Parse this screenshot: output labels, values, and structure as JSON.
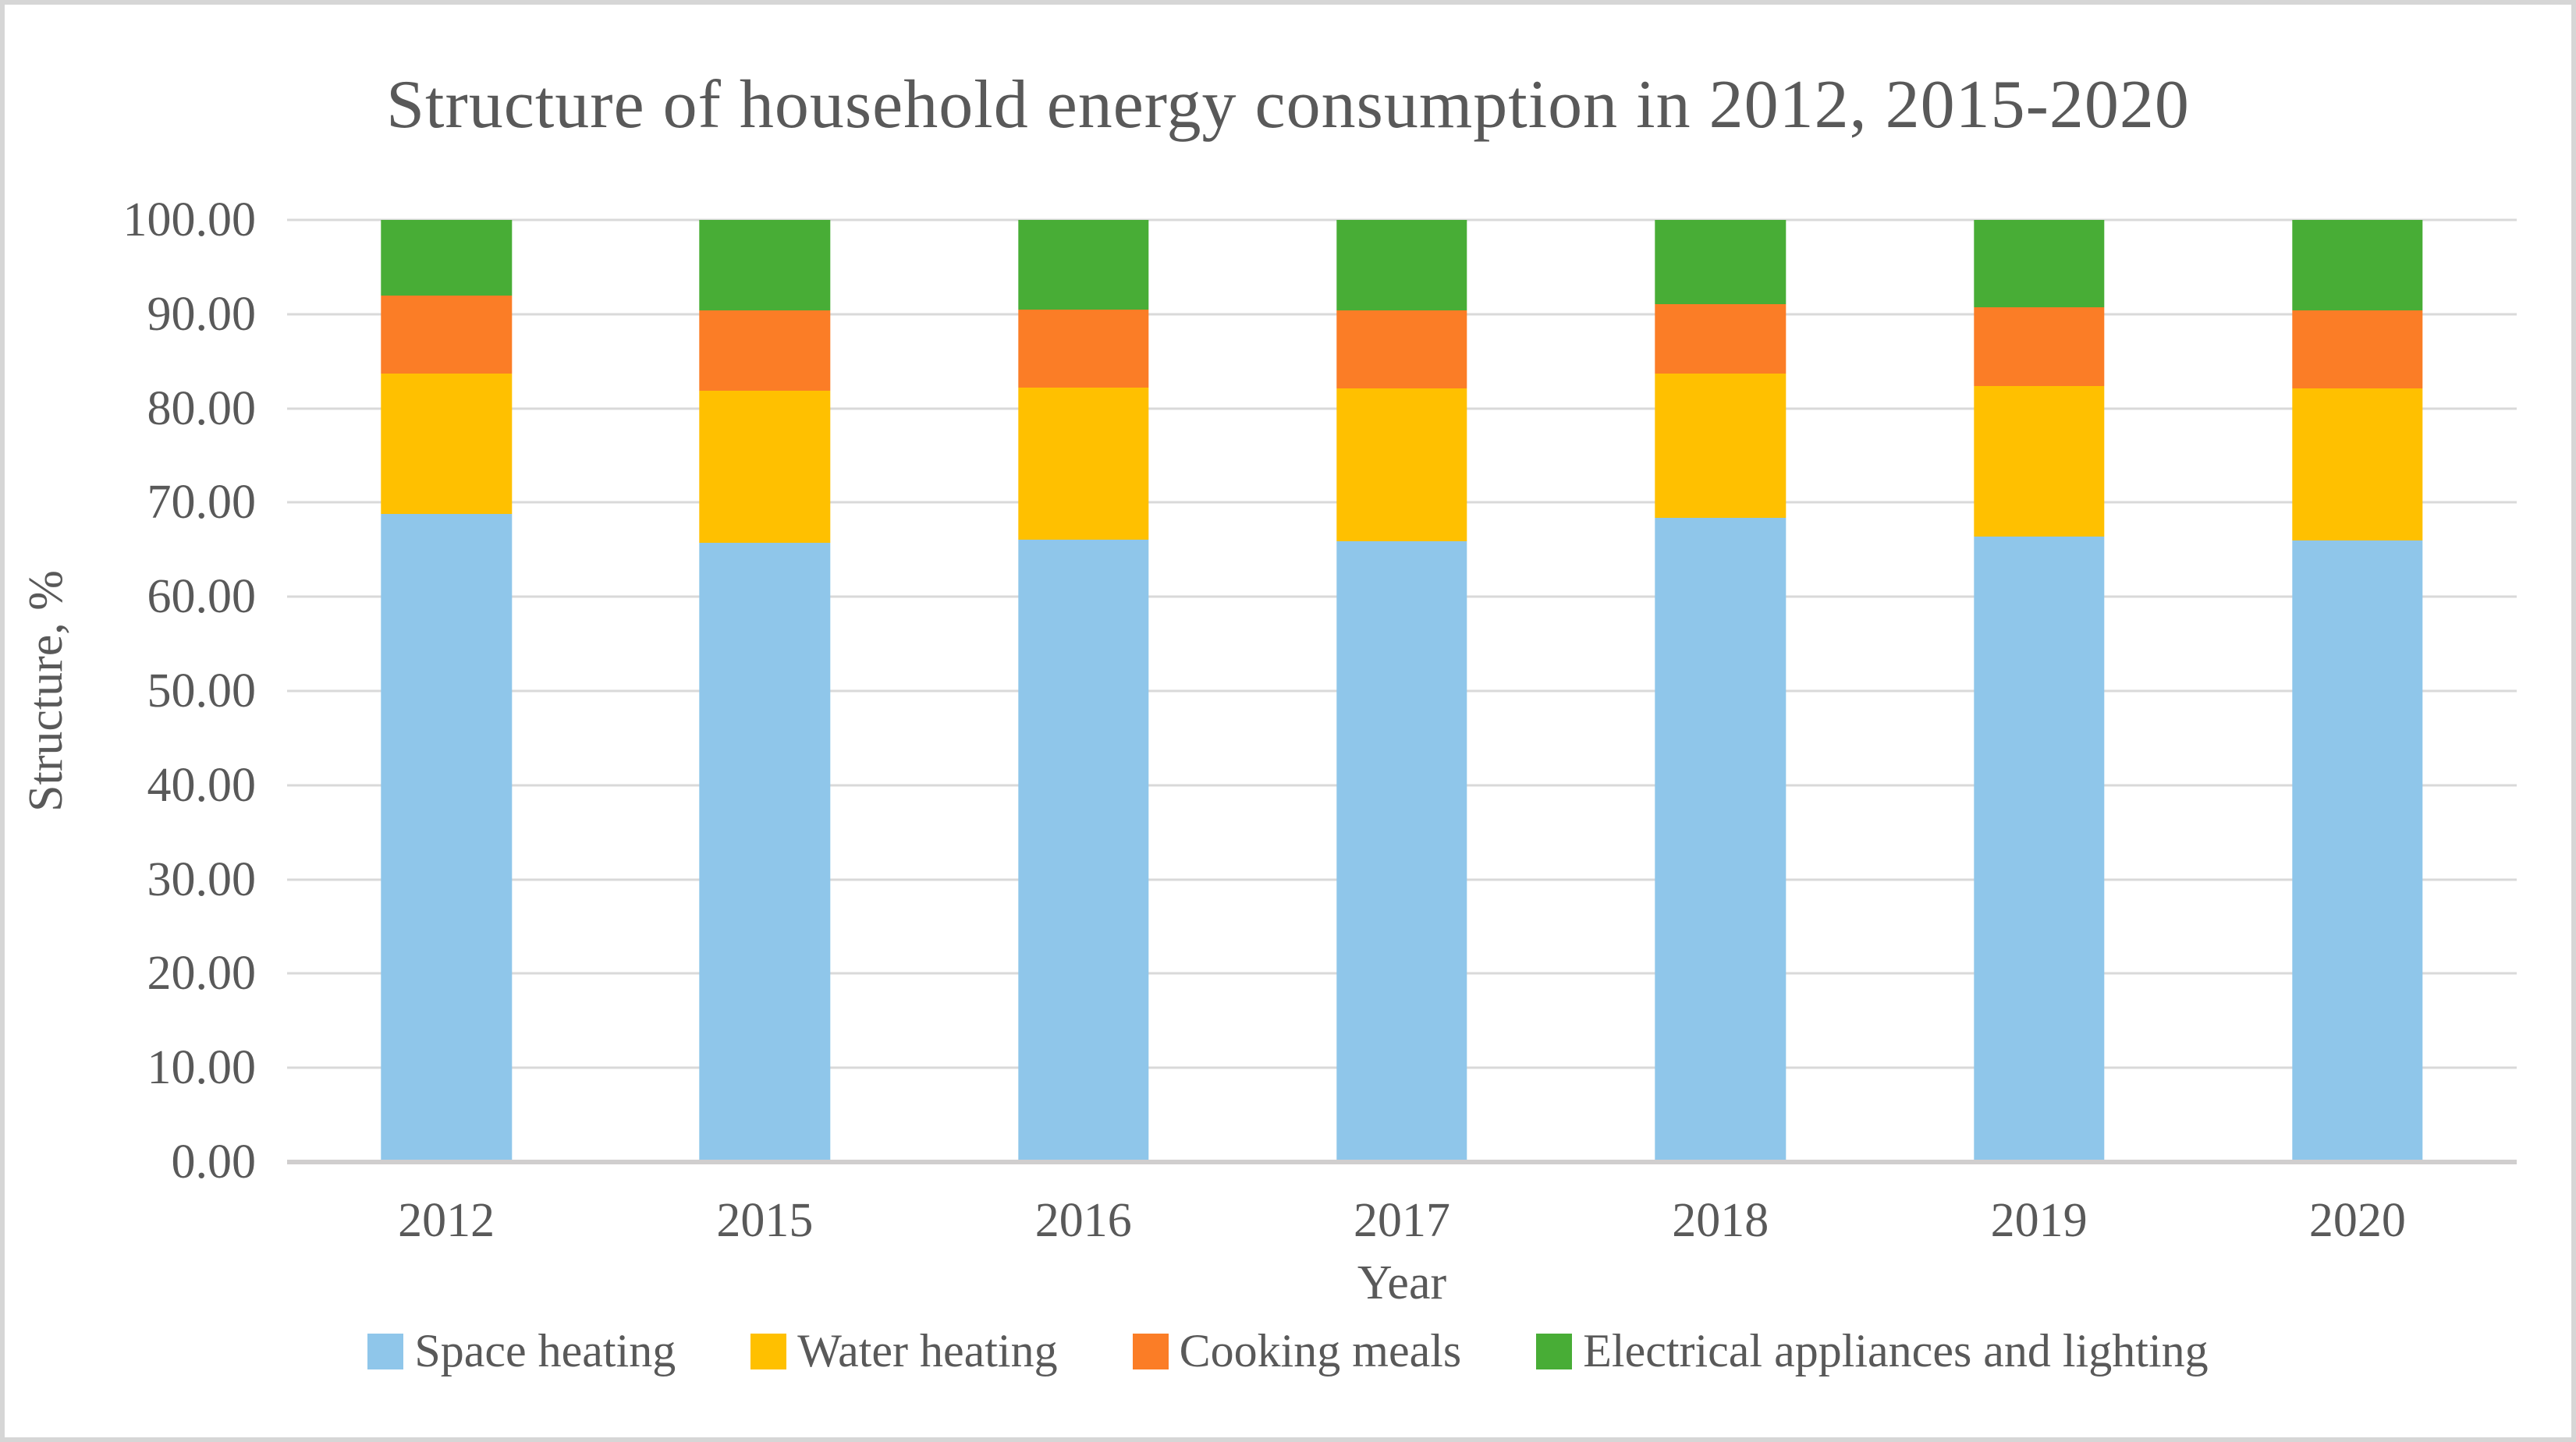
{
  "figure": {
    "background": "#ffffff",
    "border_color": "#d6d6d6",
    "text_color": "#595959",
    "gridline_color": "#d9d9d9",
    "axis_line_color": "#d0cece"
  },
  "chart_data": {
    "type": "bar",
    "stacked": true,
    "title": "Structure of household energy consumption in 2012, 2015-2020",
    "xlabel": "Year",
    "ylabel": "Structure, %",
    "categories": [
      "2012",
      "2015",
      "2016",
      "2017",
      "2018",
      "2019",
      "2020"
    ],
    "series": [
      {
        "name": "Space heating",
        "color": "#8FC6EA",
        "values": [
          68.8,
          65.7,
          66.1,
          65.9,
          68.4,
          66.4,
          66.0
        ]
      },
      {
        "name": "Water heating",
        "color": "#FFC000",
        "values": [
          14.9,
          16.2,
          16.1,
          16.2,
          15.3,
          16.0,
          16.1
        ]
      },
      {
        "name": "Cooking meals",
        "color": "#FB7D26",
        "values": [
          8.3,
          8.5,
          8.3,
          8.3,
          7.4,
          8.3,
          8.3
        ]
      },
      {
        "name": "Electrical appliances and lighting",
        "color": "#48AD36",
        "values": [
          8.0,
          9.6,
          9.5,
          9.6,
          8.9,
          9.3,
          9.6
        ]
      }
    ],
    "ylim": [
      0,
      100
    ],
    "ytick_step": 10,
    "ytick_labels": [
      "0.00",
      "10.00",
      "20.00",
      "30.00",
      "40.00",
      "50.00",
      "60.00",
      "70.00",
      "80.00",
      "90.00",
      "100.00"
    ],
    "grid": true,
    "legend_position": "bottom"
  }
}
